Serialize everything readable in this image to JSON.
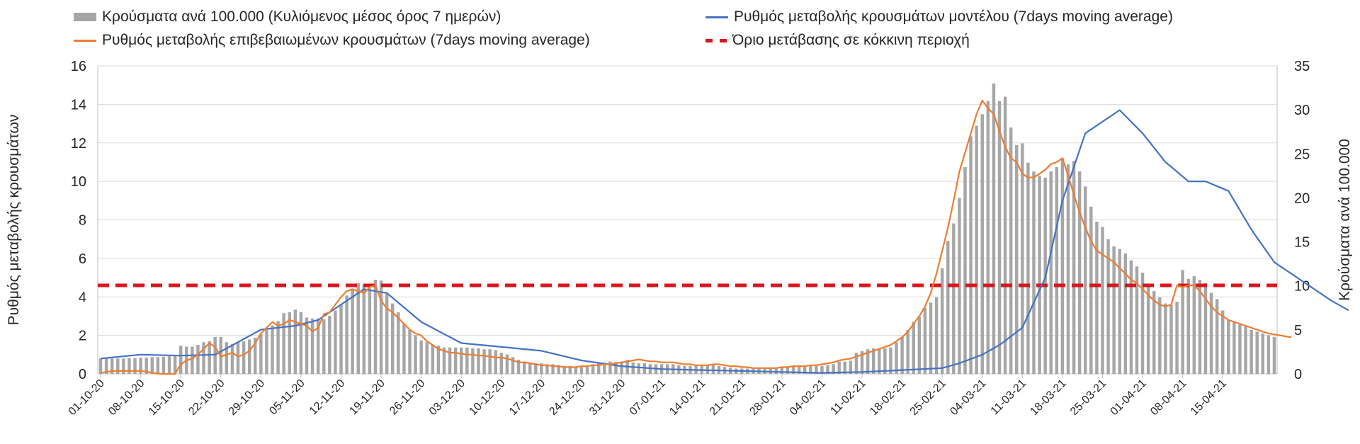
{
  "chart_data": {
    "type": "bar",
    "y_left": {
      "label": "Ρυθμός μεταβολής κρουσμάτων",
      "min": 0,
      "max": 16,
      "ticks": [
        0,
        2,
        4,
        6,
        8,
        10,
        12,
        14,
        16
      ]
    },
    "y_right": {
      "label": "Κρούσματα ανά 100.000",
      "min": 0,
      "max": 35,
      "ticks": [
        0,
        5,
        10,
        15,
        20,
        25,
        30,
        35
      ]
    },
    "x_tick_labels": [
      "01-10-20",
      "08-10-20",
      "15-10-20",
      "22-10-20",
      "29-10-20",
      "05-11-20",
      "12-11-20",
      "19-11-20",
      "26-11-20",
      "03-12-20",
      "10-12-20",
      "17-12-20",
      "24-12-20",
      "31-12-20",
      "07-01-21",
      "14-01-21",
      "21-01-21",
      "28-01-21",
      "04-02-21",
      "11-02-21",
      "18-02-21",
      "25-02-21",
      "04-03-21",
      "11-03-21",
      "18-03-21",
      "25-03-21",
      "01-04-21",
      "08-04-21",
      "15-04-21"
    ],
    "grid": "horizontal",
    "legend_position": "top",
    "threshold": {
      "name": "Όριο μετάβασης σε κόκκινη περιοχή",
      "value": 4.6,
      "color": "#d9161c"
    },
    "series": [
      {
        "name": "Κρούσματα ανά 100.000 (Κυλιόμενος μέσος όρος 7 ημερών)",
        "type": "bar",
        "axis": "right",
        "color": "#a6a6a6",
        "values": [
          1.75,
          1.75,
          1.75,
          1.75,
          1.75,
          1.8,
          1.8,
          1.85,
          1.85,
          1.9,
          1.9,
          1.95,
          2,
          2.1,
          3.2,
          3.1,
          3.1,
          3.3,
          3.6,
          3.7,
          4.2,
          4.2,
          3.6,
          3.4,
          3.6,
          3.7,
          3.9,
          4.1,
          4.5,
          5,
          5.5,
          6,
          6.9,
          7,
          7.3,
          7,
          6.4,
          6.3,
          6.3,
          6.2,
          6.6,
          7.2,
          7.9,
          8.9,
          9.6,
          10.3,
          10.1,
          9.7,
          10.7,
          10.6,
          9.2,
          8,
          7,
          5.7,
          5,
          4.4,
          3.8,
          3.6,
          3.3,
          3.2,
          3,
          3,
          3,
          3,
          3,
          2.9,
          2.9,
          2.8,
          2.8,
          2.7,
          2.4,
          2.2,
          1.9,
          1.6,
          1.4,
          1.3,
          1.2,
          1.2,
          1.1,
          1.1,
          1,
          0.9,
          0.9,
          0.8,
          0.8,
          0.8,
          1.1,
          1.2,
          1.3,
          1.4,
          1.35,
          1.4,
          1.6,
          1.3,
          1.2,
          1.2,
          1.1,
          1.1,
          1.1,
          1.1,
          1.1,
          1,
          0.9,
          0.9,
          0.9,
          0.9,
          1,
          1,
          0.9,
          0.8,
          0.7,
          0.6,
          0.6,
          0.6,
          0.6,
          0.6,
          0.7,
          0.7,
          0.7,
          0.7,
          0.8,
          0.8,
          0.8,
          0.8,
          0.9,
          0.9,
          0.9,
          1,
          1.1,
          1.4,
          1.4,
          1.5,
          2.4,
          2.6,
          2.8,
          2.9,
          2.8,
          2.9,
          3,
          3.6,
          4.2,
          5,
          5.9,
          6.5,
          7.5,
          8.1,
          8.7,
          12,
          15.1,
          17.1,
          20,
          23.5,
          27,
          28.2,
          29.5,
          31,
          33,
          31,
          31.5,
          28,
          26,
          26.2,
          24,
          23,
          22.5,
          22.3,
          23,
          23.5,
          24.5,
          23.8,
          24.2,
          23,
          21.3,
          19,
          17.3,
          16.7,
          15.3,
          14.5,
          14.2,
          13.7,
          12.9,
          12.2,
          11.5,
          10.2,
          9.4,
          8.7,
          8,
          7.8,
          8.2,
          11.8,
          10.8,
          11.1,
          10.7,
          10.3,
          9.2,
          8.5,
          7.2,
          6.1,
          5.9,
          5.6,
          5.4,
          5,
          4.8,
          4.6,
          4.4,
          4.2
        ]
      },
      {
        "name": "Ρυθμός μεταβολής κρουσμάτων μοντέλου (7days moving average)",
        "type": "line",
        "axis": "left",
        "color": "#4472c4",
        "x_index": [
          0,
          7,
          14,
          20,
          28,
          34,
          38,
          42,
          46,
          50,
          56,
          63,
          70,
          77,
          84,
          91,
          98,
          105,
          112,
          119,
          126,
          133,
          140,
          147,
          150,
          154,
          157,
          161,
          165,
          168,
          172,
          178,
          182,
          186,
          190,
          193,
          197,
          201,
          205,
          210,
          215,
          218
        ],
        "values": [
          0.8,
          1.0,
          0.95,
          1.0,
          2.3,
          2.5,
          2.8,
          3.6,
          4.4,
          4.2,
          2.7,
          1.6,
          1.4,
          1.2,
          0.7,
          0.4,
          0.25,
          0.2,
          0.15,
          0.1,
          0.05,
          0.1,
          0.2,
          0.3,
          0.55,
          1.0,
          1.5,
          2.4,
          5.0,
          9.0,
          12.5,
          13.7,
          12.5,
          11.0,
          10.0,
          10.0,
          9.5,
          7.5,
          5.8,
          4.8,
          3.8,
          3.3
        ]
      },
      {
        "name": "Ρυθμός μεταβολής επιβεβαιωμένων κρουσμάτων (7days moving average)",
        "type": "line",
        "axis": "left",
        "color": "#ed7d31",
        "values": [
          0.05,
          0.1,
          0.15,
          0.15,
          0.15,
          0.15,
          0.15,
          0.15,
          0.12,
          0.05,
          0.02,
          0,
          0,
          0,
          0.5,
          0.7,
          0.8,
          1.0,
          1.3,
          1.6,
          1.4,
          0.9,
          1.0,
          1.1,
          0.9,
          1.0,
          1.2,
          1.6,
          2.1,
          2.4,
          2.7,
          2.5,
          2.6,
          2.8,
          2.7,
          2.6,
          2.5,
          2.2,
          2.4,
          3.1,
          3.2,
          3.6,
          4.0,
          4.3,
          4.4,
          4.3,
          4.2,
          4.5,
          4.6,
          3.8,
          3.4,
          3.2,
          2.9,
          2.6,
          2.3,
          2.1,
          2.0,
          1.7,
          1.5,
          1.3,
          1.2,
          1.1,
          1.1,
          1.05,
          1.0,
          1.0,
          0.95,
          0.95,
          0.9,
          0.85,
          0.85,
          0.8,
          0.7,
          0.6,
          0.6,
          0.55,
          0.5,
          0.45,
          0.45,
          0.4,
          0.4,
          0.35,
          0.35,
          0.35,
          0.4,
          0.4,
          0.45,
          0.45,
          0.5,
          0.5,
          0.55,
          0.6,
          0.65,
          0.7,
          0.75,
          0.7,
          0.65,
          0.65,
          0.6,
          0.6,
          0.6,
          0.55,
          0.5,
          0.5,
          0.45,
          0.45,
          0.45,
          0.5,
          0.5,
          0.45,
          0.4,
          0.4,
          0.35,
          0.35,
          0.3,
          0.3,
          0.3,
          0.3,
          0.3,
          0.35,
          0.35,
          0.4,
          0.4,
          0.4,
          0.45,
          0.45,
          0.5,
          0.55,
          0.6,
          0.7,
          0.75,
          0.8,
          0.9,
          1.0,
          1.1,
          1.2,
          1.3,
          1.4,
          1.5,
          1.7,
          1.9,
          2.2,
          2.6,
          3.0,
          3.5,
          4.2,
          5.2,
          6.4,
          7.6,
          9.0,
          10.5,
          11.5,
          12.5,
          13.5,
          14.2,
          13.8,
          13.5,
          12.6,
          11.8,
          11.2,
          11.0,
          10.4,
          10.2,
          10.2,
          10.4,
          10.6,
          10.9,
          11.0,
          11.2,
          10.3,
          9.3,
          8.4,
          7.6,
          6.9,
          6.4,
          6.2,
          6.0,
          5.8,
          5.5,
          5.2,
          4.9,
          4.7,
          4.4,
          4.1,
          3.8,
          3.6,
          3.5,
          3.6,
          4.6,
          4.5,
          4.6,
          4.6,
          4.3,
          3.9,
          3.5,
          3.2,
          3.0,
          2.8,
          2.7,
          2.6,
          2.5,
          2.4,
          2.3,
          2.2,
          2.1,
          2.05,
          2.0,
          1.95,
          1.9
        ]
      }
    ]
  }
}
